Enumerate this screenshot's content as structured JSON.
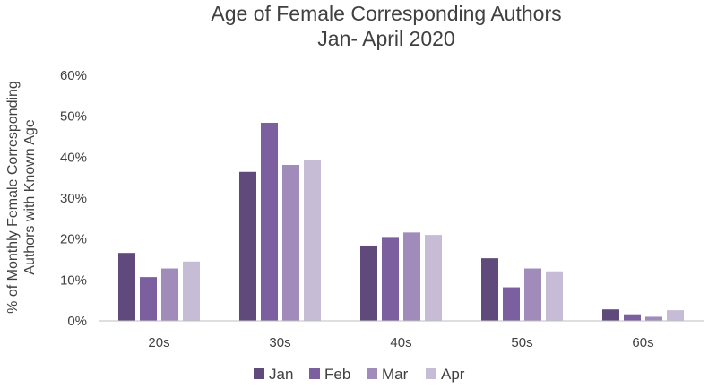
{
  "chart_data": {
    "type": "bar",
    "title_line1": "Age of Female Corresponding Authors",
    "title_line2": "Jan- April 2020",
    "ylabel_line1": "% of Monthly Female Corresponding",
    "ylabel_line2": "Authors with Known Age",
    "xlabel": "",
    "categories": [
      "20s",
      "30s",
      "40s",
      "50s",
      "60s"
    ],
    "ylim": [
      0,
      60
    ],
    "yticks": [
      0,
      10,
      20,
      30,
      40,
      50,
      60
    ],
    "ytick_labels": [
      "0%",
      "10%",
      "20%",
      "30%",
      "40%",
      "50%",
      "60%"
    ],
    "grid": false,
    "legend_position": "bottom",
    "series": [
      {
        "name": "Jan",
        "color": "#604a7b",
        "values": [
          16.6,
          36.4,
          18.4,
          15.3,
          2.8
        ]
      },
      {
        "name": "Feb",
        "color": "#7b5f9e",
        "values": [
          10.7,
          48.4,
          20.5,
          8.2,
          1.6
        ]
      },
      {
        "name": "Mar",
        "color": "#a08bbb",
        "values": [
          12.8,
          38.1,
          21.6,
          12.8,
          1.0
        ]
      },
      {
        "name": "Apr",
        "color": "#c6bcd6",
        "values": [
          14.5,
          39.3,
          21.0,
          12.1,
          2.6
        ]
      }
    ]
  }
}
